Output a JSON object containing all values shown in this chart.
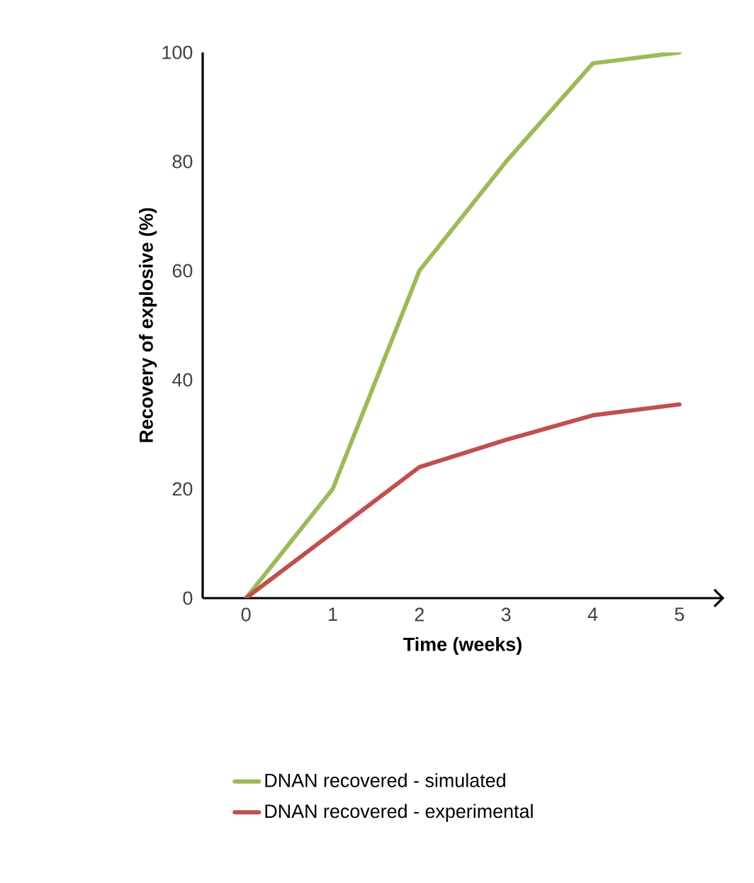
{
  "chart_data": {
    "type": "line",
    "xlabel": "Time (weeks)",
    "ylabel": "Recovery of explosive (%)",
    "x": [
      0,
      1,
      2,
      3,
      4,
      5
    ],
    "series": [
      {
        "name": "DNAN recovered - simulated",
        "color": "#9bbb59",
        "values": [
          0,
          20,
          60,
          80,
          98,
          100
        ]
      },
      {
        "name": "DNAN recovered - experimental",
        "color": "#c0504d",
        "values": [
          0,
          12,
          24,
          29,
          33.5,
          35.5
        ]
      }
    ],
    "xlim": [
      -0.5,
      5.5
    ],
    "ylim": [
      0,
      100
    ],
    "xticks": [
      0,
      1,
      2,
      3,
      4,
      5
    ],
    "yticks": [
      0,
      20,
      40,
      60,
      80,
      100
    ],
    "grid": false,
    "legend": "bottom",
    "marker": "none",
    "line_style": "solid"
  }
}
